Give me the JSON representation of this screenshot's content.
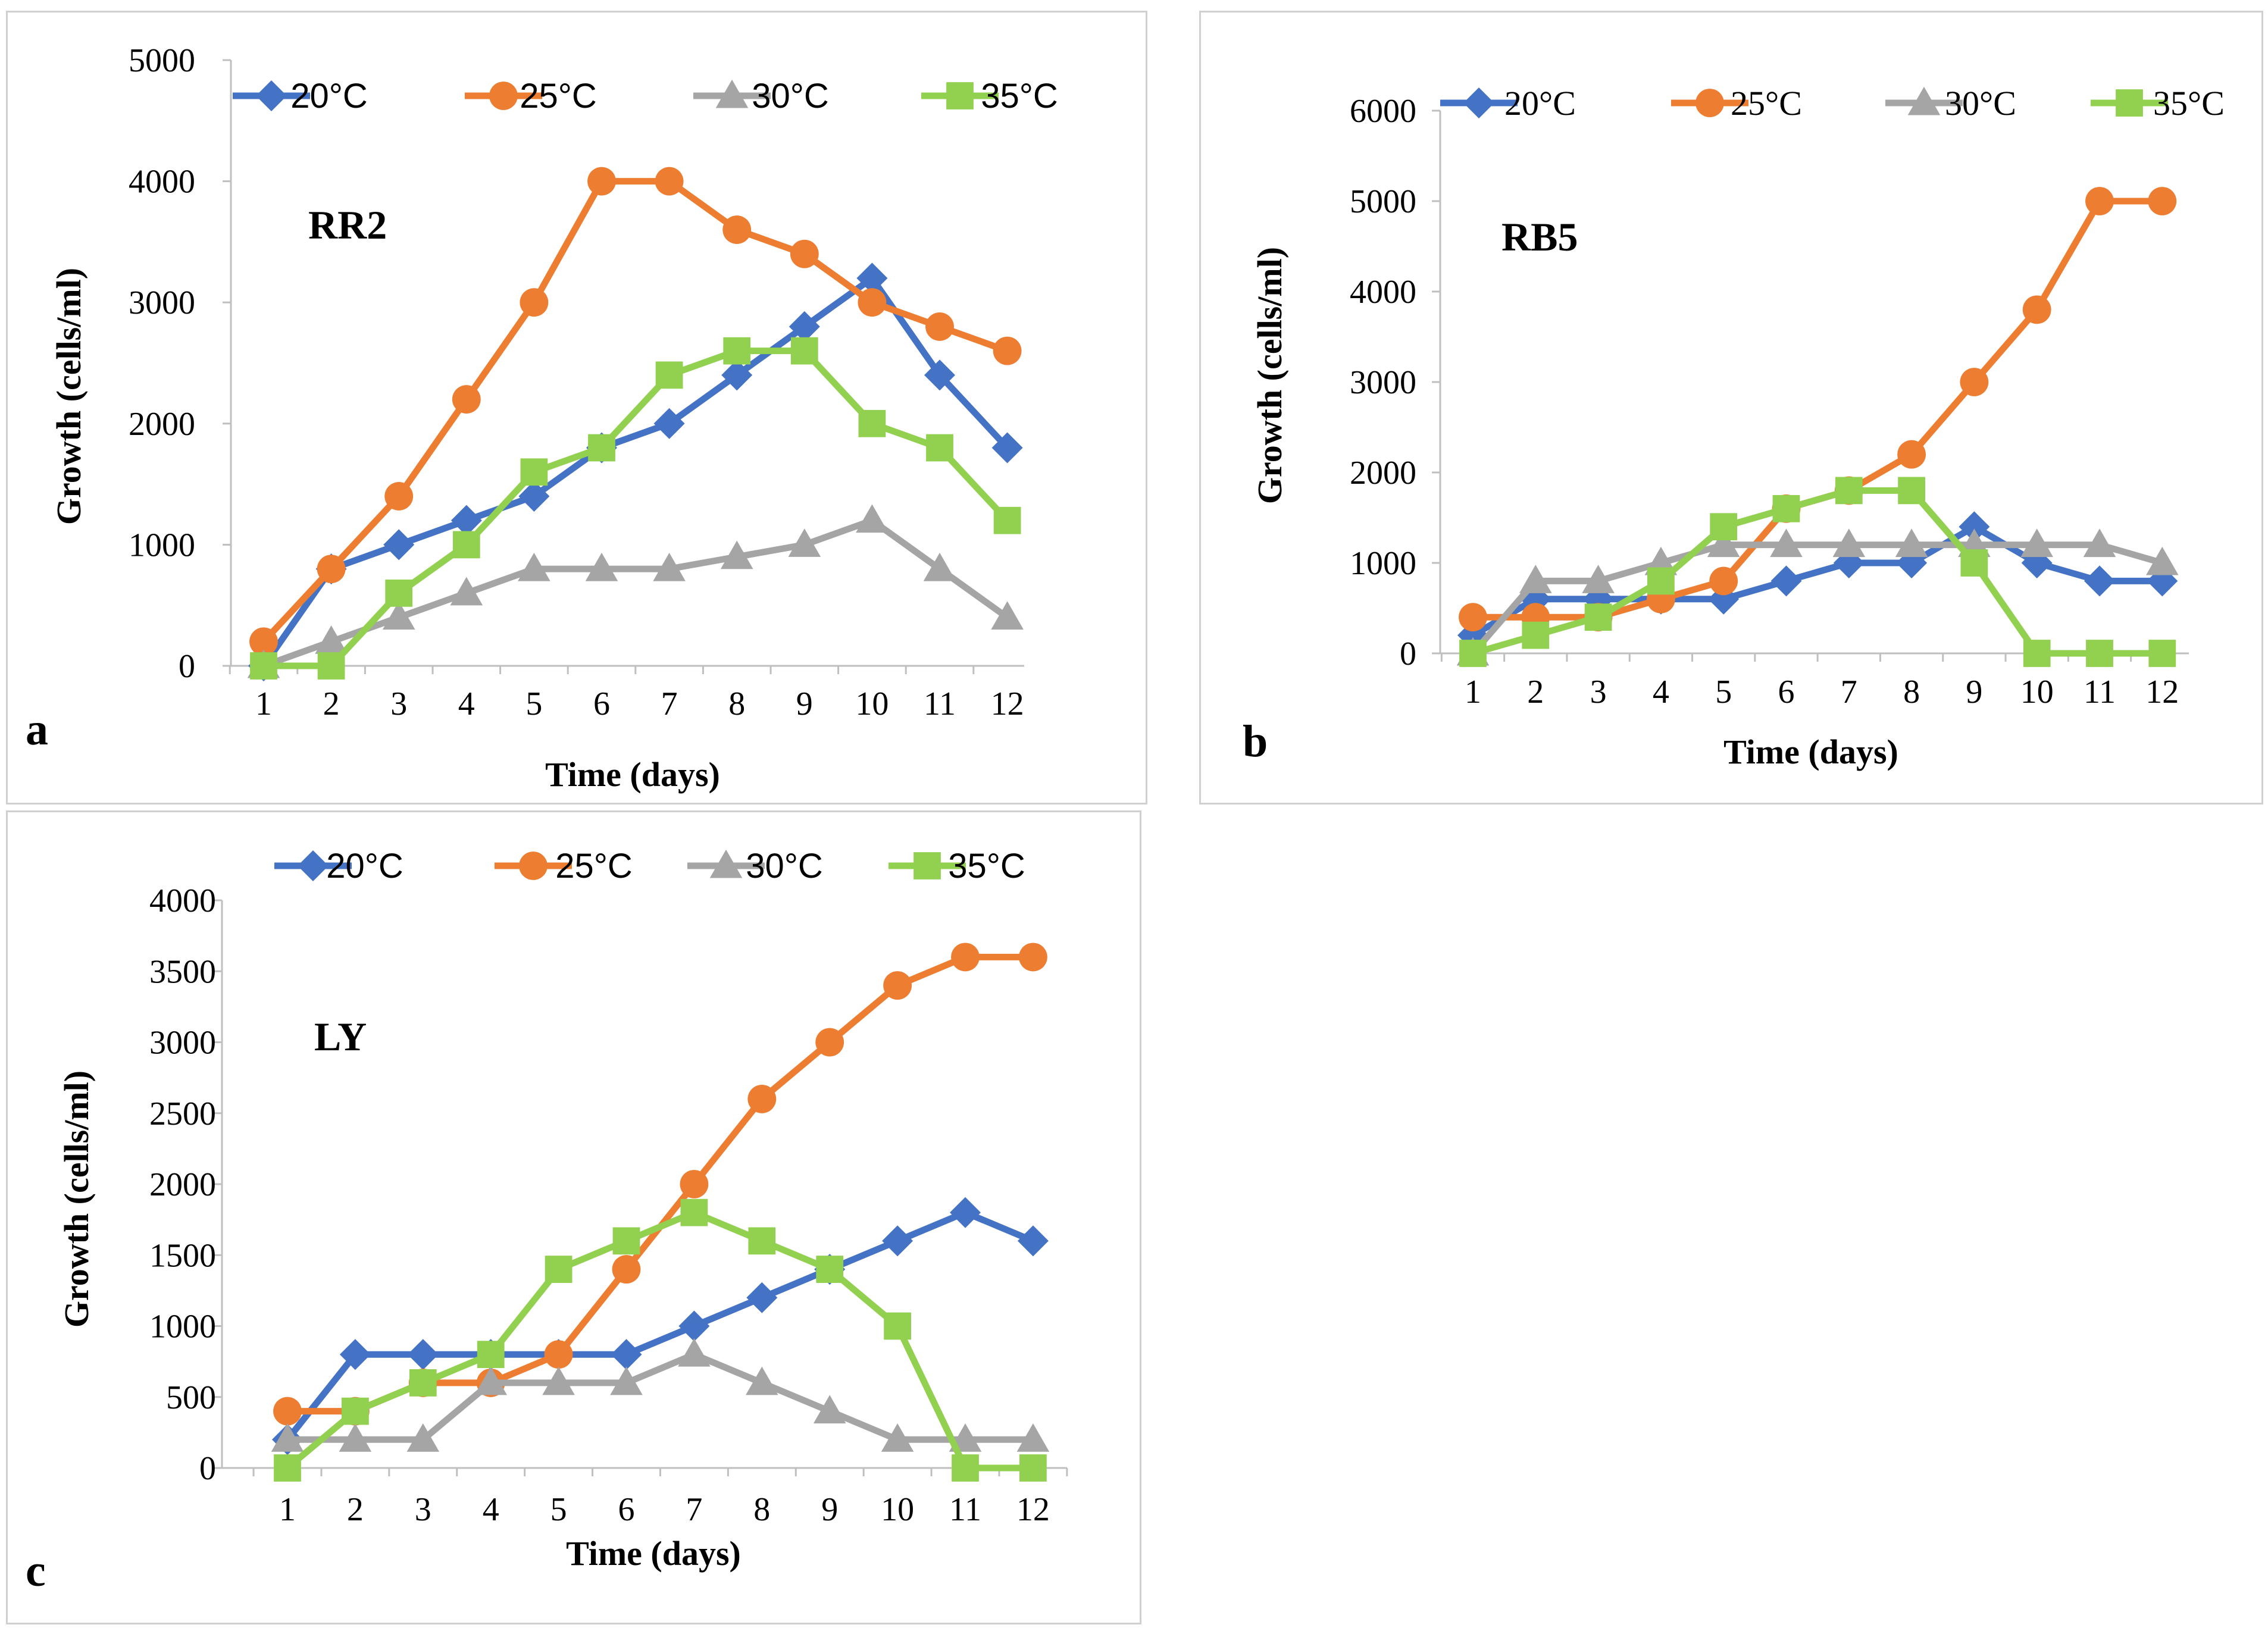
{
  "colors": {
    "20C": "#4472C4",
    "25C": "#ED7D31",
    "30C": "#A5A5A5",
    "35C": "#92D050"
  },
  "chart_data": [
    {
      "type": "line",
      "id": "a",
      "panel_label": "a",
      "title": "RR2",
      "xlabel": "Time (days)",
      "ylabel": "Growth (cells/ml)",
      "categories": [
        "1",
        "2",
        "3",
        "4",
        "5",
        "6",
        "7",
        "8",
        "9",
        "10",
        "11",
        "12"
      ],
      "ylim": [
        0,
        5000
      ],
      "yticks": [
        "0",
        "1000",
        "2000",
        "3000",
        "4000",
        "5000"
      ],
      "legend_position": "top",
      "series": [
        {
          "name": "20°C",
          "key": "20C",
          "marker": "diamond",
          "values": [
            0,
            800,
            1000,
            1200,
            1400,
            1800,
            2000,
            2400,
            2800,
            3200,
            2400,
            1800
          ]
        },
        {
          "name": "25°C",
          "key": "25C",
          "marker": "circle",
          "values": [
            200,
            800,
            1400,
            2200,
            3000,
            4000,
            4000,
            3600,
            3400,
            3000,
            2800,
            2600
          ]
        },
        {
          "name": "30°C",
          "key": "30C",
          "marker": "triangle",
          "values": [
            0,
            200,
            400,
            600,
            800,
            800,
            800,
            900,
            1000,
            1200,
            800,
            400
          ]
        },
        {
          "name": "35°C",
          "key": "35C",
          "marker": "square",
          "values": [
            0,
            0,
            600,
            1000,
            1600,
            1800,
            2400,
            2600,
            2600,
            2000,
            1800,
            1200
          ]
        }
      ]
    },
    {
      "type": "line",
      "id": "b",
      "panel_label": "b",
      "title": "RB5",
      "xlabel": "Time (days)",
      "ylabel": "Growth (cells/ml)",
      "categories": [
        "1",
        "2",
        "3",
        "4",
        "5",
        "6",
        "7",
        "8",
        "9",
        "10",
        "11",
        "12"
      ],
      "ylim": [
        0,
        6000
      ],
      "yticks": [
        "0",
        "1000",
        "2000",
        "3000",
        "4000",
        "5000",
        "6000"
      ],
      "legend_position": "top",
      "series": [
        {
          "name": "20°C",
          "key": "20C",
          "marker": "diamond",
          "values": [
            200,
            600,
            600,
            600,
            600,
            800,
            1000,
            1000,
            1400,
            1000,
            800,
            800
          ]
        },
        {
          "name": "25°C",
          "key": "25C",
          "marker": "circle",
          "values": [
            400,
            400,
            400,
            600,
            800,
            1600,
            1800,
            2200,
            3000,
            3800,
            5000,
            5000
          ]
        },
        {
          "name": "30°C",
          "key": "30C",
          "marker": "triangle",
          "values": [
            0,
            800,
            800,
            1000,
            1200,
            1200,
            1200,
            1200,
            1200,
            1200,
            1200,
            1000
          ]
        },
        {
          "name": "35°C",
          "key": "35C",
          "marker": "square",
          "values": [
            0,
            200,
            400,
            800,
            1400,
            1600,
            1800,
            1800,
            1000,
            0,
            0,
            0
          ]
        }
      ]
    },
    {
      "type": "line",
      "id": "c",
      "panel_label": "c",
      "title": "LY",
      "xlabel": "Time (days)",
      "ylabel": "Growth (cells/ml)",
      "categories": [
        "1",
        "2",
        "3",
        "4",
        "5",
        "6",
        "7",
        "8",
        "9",
        "10",
        "11",
        "12"
      ],
      "ylim": [
        0,
        4000
      ],
      "yticks": [
        "0",
        "500",
        "1000",
        "1500",
        "2000",
        "2500",
        "3000",
        "3500",
        "4000"
      ],
      "legend_position": "top",
      "series": [
        {
          "name": "20°C",
          "key": "20C",
          "marker": "diamond",
          "values": [
            200,
            800,
            800,
            800,
            800,
            800,
            1000,
            1200,
            1400,
            1600,
            1800,
            1600
          ]
        },
        {
          "name": "25°C",
          "key": "25C",
          "marker": "circle",
          "values": [
            400,
            400,
            600,
            600,
            800,
            1400,
            2000,
            2600,
            3000,
            3400,
            3600,
            3600
          ]
        },
        {
          "name": "30°C",
          "key": "30C",
          "marker": "triangle",
          "values": [
            200,
            200,
            200,
            600,
            600,
            600,
            800,
            600,
            400,
            200,
            200,
            200
          ]
        },
        {
          "name": "35°C",
          "key": "35C",
          "marker": "square",
          "values": [
            0,
            400,
            600,
            800,
            1400,
            1600,
            1800,
            1600,
            1400,
            1000,
            0,
            0
          ]
        }
      ]
    }
  ]
}
